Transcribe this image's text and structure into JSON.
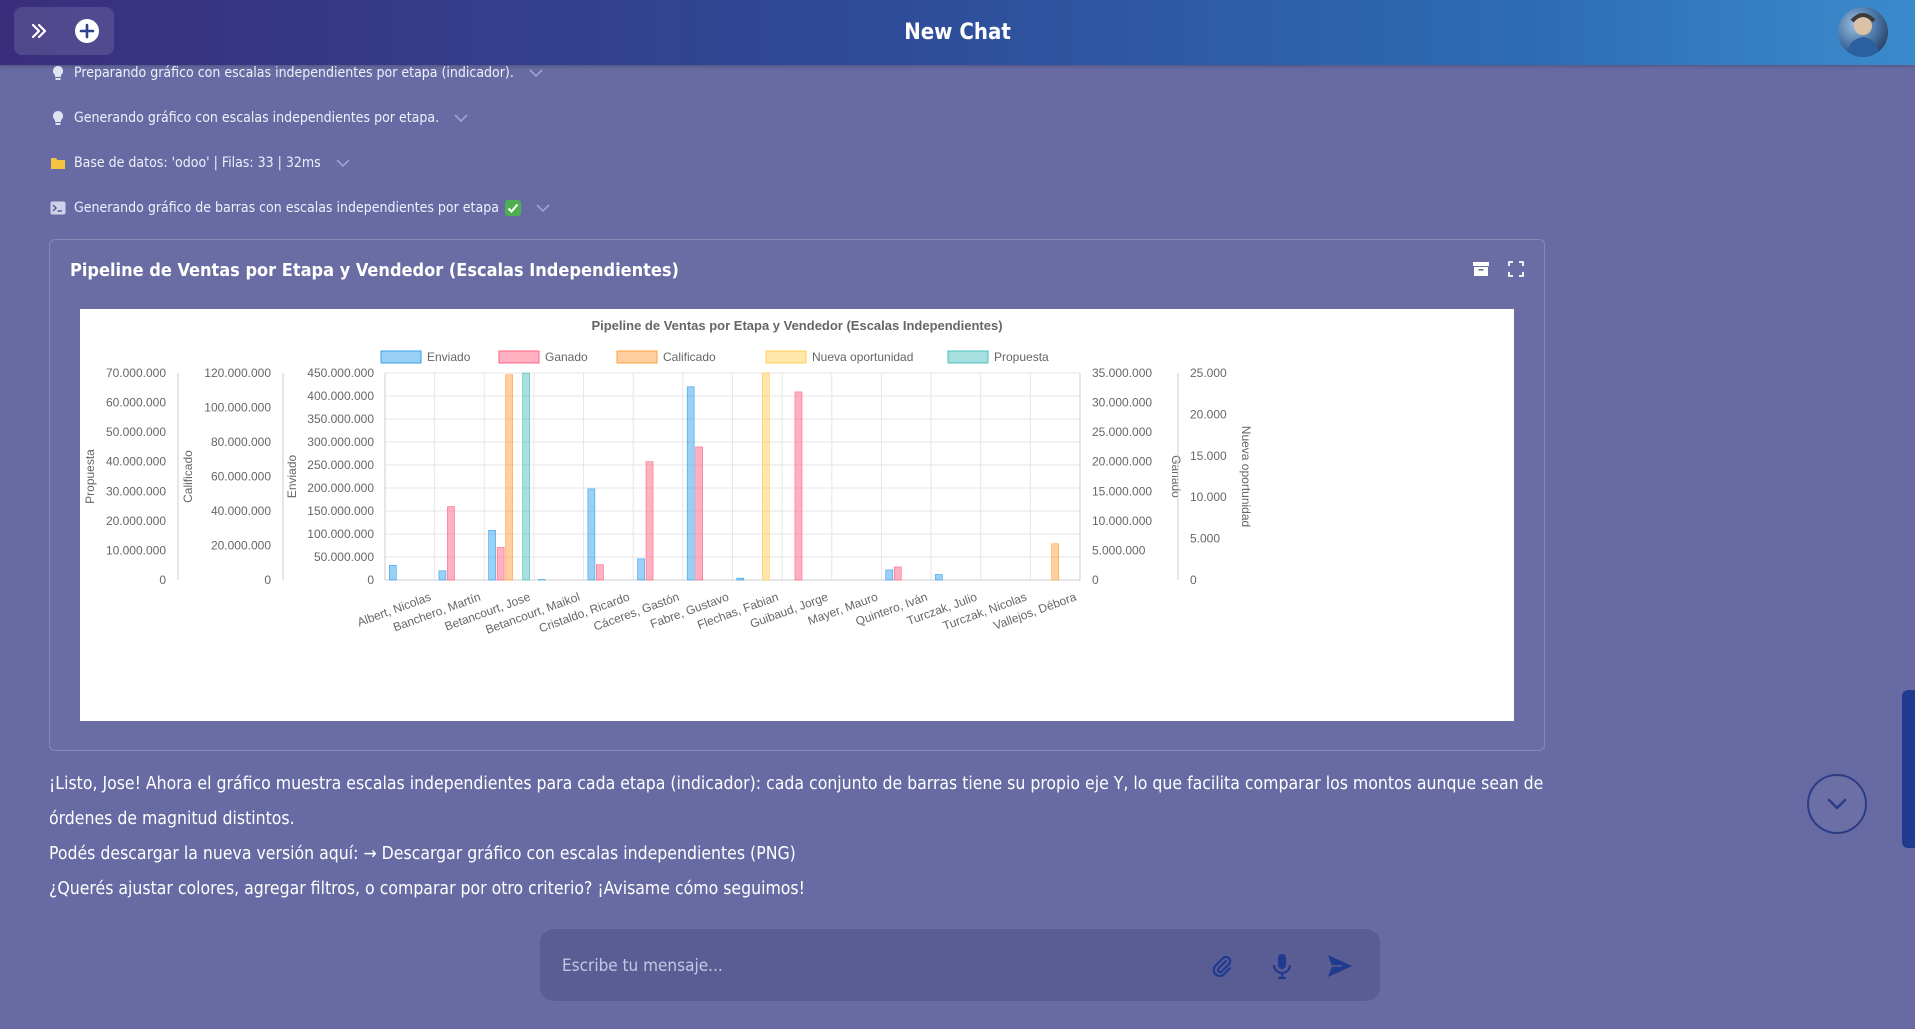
{
  "header": {
    "title": "New Chat"
  },
  "steps": [
    {
      "icon": "lightbulb-icon",
      "text": "Preparando gráfico con escalas independientes por etapa (indicador)."
    },
    {
      "icon": "lightbulb-icon",
      "text": "Generando gráfico con escalas independientes por etapa."
    },
    {
      "icon": "folder-icon",
      "text": "Base de datos: 'odoo' | Filas: 33 | 32ms"
    },
    {
      "icon": "terminal-icon",
      "text": "Generando gráfico de barras con escalas independientes por etapa"
    }
  ],
  "card": {
    "title": "Pipeline de Ventas por Etapa y Vendedor (Escalas Independientes)"
  },
  "chart_data": {
    "type": "bar",
    "title": "Pipeline de Ventas por Etapa y Vendedor (Escalas Independientes)",
    "categories": [
      "Albert, Nicolas",
      "Banchero, Martín",
      "Betancourt, Jose",
      "Betancourt, Maikol",
      "Cristaldo, Ricardo",
      "Cáceres, Gastón",
      "Fabre, Gustavo",
      "Flechas, Fabian",
      "Guibaud, Jorge",
      "Mayer, Mauro",
      "Quintero, Iván",
      "Turczak, Julio",
      "Turczak, Nicolas",
      "Vallejos, Débora"
    ],
    "legend_position": "top",
    "series": [
      {
        "name": "Enviado",
        "axis": "enviado",
        "color": "#36a2eb",
        "values": [
          32000000,
          20000000,
          108000000,
          1000000,
          198000000,
          46000000,
          420000000,
          4000000,
          0,
          0,
          22000000,
          12000000,
          0,
          0
        ]
      },
      {
        "name": "Ganado",
        "axis": "ganado",
        "color": "#ff6384",
        "values": [
          0,
          12400000,
          5500000,
          0,
          2600000,
          20000000,
          22500000,
          0,
          31800000,
          0,
          2200000,
          0,
          0,
          0
        ]
      },
      {
        "name": "Calificado",
        "axis": "calificado",
        "color": "#ff9f40",
        "values": [
          0,
          0,
          119000000,
          0,
          0,
          0,
          0,
          0,
          0,
          0,
          0,
          0,
          0,
          21000000
        ]
      },
      {
        "name": "Nueva oportunidad",
        "axis": "nueva",
        "color": "#ffcd56",
        "values": [
          0,
          0,
          0,
          0,
          0,
          0,
          0,
          25000,
          0,
          0,
          0,
          0,
          0,
          0
        ]
      },
      {
        "name": "Propuesta",
        "axis": "propuesta",
        "color": "#4bc0c0",
        "values": [
          0,
          0,
          70000000,
          0,
          0,
          0,
          0,
          0,
          0,
          0,
          0,
          0,
          0,
          0
        ]
      }
    ],
    "axes": [
      {
        "id": "propuesta",
        "title": "Propuesta",
        "side": "left",
        "min": 0,
        "max": 70000000,
        "ticks": [
          "70.000.000",
          "60.000.000",
          "50.000.000",
          "40.000.000",
          "30.000.000",
          "20.000.000",
          "10.000.000",
          "0"
        ]
      },
      {
        "id": "calificado",
        "title": "Calificado",
        "side": "left",
        "min": 0,
        "max": 120000000,
        "ticks": [
          "120.000.000",
          "100.000.000",
          "80.000.000",
          "60.000.000",
          "40.000.000",
          "20.000.000",
          "0"
        ]
      },
      {
        "id": "enviado",
        "title": "Enviado",
        "side": "left",
        "min": 0,
        "max": 450000000,
        "ticks": [
          "450.000.000",
          "400.000.000",
          "350.000.000",
          "300.000.000",
          "250.000.000",
          "200.000.000",
          "150.000.000",
          "100.000.000",
          "50.000.000",
          "0"
        ]
      },
      {
        "id": "ganado",
        "title": "Ganado",
        "side": "right",
        "min": 0,
        "max": 35000000,
        "ticks": [
          "35.000.000",
          "30.000.000",
          "25.000.000",
          "20.000.000",
          "15.000.000",
          "10.000.000",
          "5.000.000",
          "0"
        ]
      },
      {
        "id": "nueva",
        "title": "Nueva oportunidad",
        "side": "right",
        "min": 0,
        "max": 25000,
        "ticks": [
          "25.000",
          "20.000",
          "15.000",
          "10.000",
          "5.000",
          "0"
        ]
      }
    ]
  },
  "message": {
    "line1": "¡Listo, Jose! Ahora el gráfico muestra escalas independientes para cada etapa (indicador): cada conjunto de barras tiene su propio eje Y, lo que facilita comparar los montos aunque sean de",
    "line2": "órdenes de magnitud distintos.",
    "line3_prefix": "Podés descargar la nueva versión aquí: ",
    "line3_link": "→ Descargar gráfico con escalas independientes (PNG)",
    "line4": "¿Querés ajustar colores, agregar filtros, o comparar por otro criterio? ¡Avisame cómo seguimos!"
  },
  "composer": {
    "placeholder": "Escribe tu mensaje..."
  },
  "colors": {
    "background": "#686ba3",
    "accent": "#1f3a8f"
  }
}
